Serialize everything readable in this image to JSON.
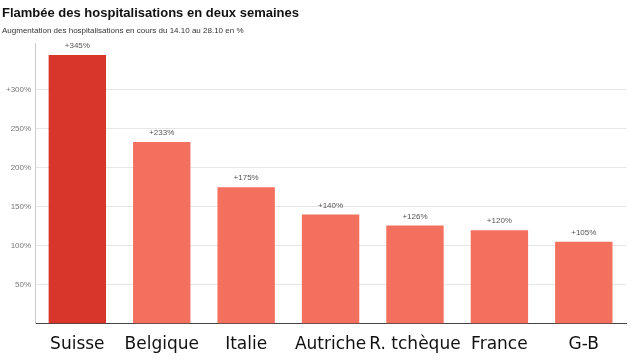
{
  "chart_data": {
    "type": "bar",
    "title": "Flambée des hospitalisations en deux semaines",
    "subtitle": "Augmentation des hospitalisations en cours du 14.10 au 28.10 en %",
    "categories": [
      "Suisse",
      "Belgique",
      "Italie",
      "Autriche",
      "R. tchèque",
      "France",
      "G-B"
    ],
    "values": [
      345,
      233,
      175,
      140,
      126,
      120,
      105
    ],
    "value_labels": [
      "+345%",
      "+233%",
      "+175%",
      "+140%",
      "+126%",
      "+120%",
      "+105%"
    ],
    "colors": [
      "#d9362b",
      "#f4705e",
      "#f4705e",
      "#f4705e",
      "#f4705e",
      "#f4705e",
      "#f4705e"
    ],
    "ylim": [
      0,
      360
    ],
    "yticks": [
      {
        "value": 50,
        "label": "50%"
      },
      {
        "value": 100,
        "label": "100%"
      },
      {
        "value": 150,
        "label": "150%"
      },
      {
        "value": 200,
        "label": "200%"
      },
      {
        "value": 250,
        "label": "250%"
      },
      {
        "value": 300,
        "label": "+300%"
      }
    ],
    "grid": true,
    "data_labels": true
  }
}
